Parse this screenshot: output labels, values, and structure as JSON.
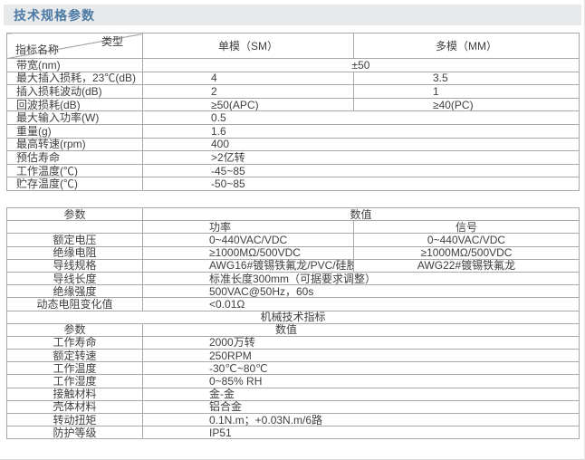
{
  "page": {
    "title": "技术规格参数"
  },
  "colors": {
    "accent": "#4d7ba6",
    "band_bg": "#e7e9eb",
    "border": "#a8a8a8",
    "text": "#404040"
  },
  "t1": {
    "corner": {
      "name": "指标名称",
      "type": "类型"
    },
    "cols": {
      "sm": "单模（SM）",
      "mm": "多模（MM）"
    },
    "rows": [
      {
        "label": "带宽(nm)",
        "value": "±50"
      },
      {
        "label": "最大插入损耗，23℃(dB)",
        "sm": "4",
        "mm": "3.5"
      },
      {
        "label": "插入损耗波动(dB)",
        "sm": "2",
        "mm": "1"
      },
      {
        "label": "回波损耗(dB)",
        "sm": "≥50(APC)",
        "mm": "≥40(PC)"
      },
      {
        "label": "最大输入功率(W)",
        "value": "0.5"
      },
      {
        "label": "重量(g)",
        "value": "1.6"
      },
      {
        "label": "最高转速(rpm)",
        "value": "400"
      },
      {
        "label": "预估寿命",
        "value": ">2亿转"
      },
      {
        "label": "工作温度(℃)",
        "value": "-45~85"
      },
      {
        "label": "贮存温度(℃)",
        "value": "-50~85"
      }
    ]
  },
  "t2": {
    "h": {
      "param": "参数",
      "value": "数值"
    },
    "sub": {
      "power": "功率",
      "signal": "信号"
    },
    "rows": [
      {
        "label": "额定电压",
        "power": "0~440VAC/VDC",
        "signal": "0~440VAC/VDC"
      },
      {
        "label": "绝缘电阻",
        "power": "≥1000MΩ/500VDC",
        "signal": "≥1000MΩ/500VDC"
      },
      {
        "label": "导线规格",
        "power": "AWG16#镀锡铁氟龙/PVC/硅胶",
        "signal": "AWG22#镀锡铁氟龙"
      },
      {
        "label": "导线长度",
        "value": "标准长度300mm（可据要求调整）"
      },
      {
        "label": "绝缘强度",
        "value": "500VAC@50Hz，60s"
      },
      {
        "label": "动态电阻变化值",
        "value": "<0.01Ω"
      }
    ],
    "section_title": "机械技术指标",
    "mech_h": {
      "param": "参数",
      "value": "数值"
    },
    "mech_rows": [
      {
        "label": "工作寿命",
        "value": "2000万转"
      },
      {
        "label": "额定转速",
        "value": "250RPM"
      },
      {
        "label": "工作温度",
        "value": "-30℃~80℃"
      },
      {
        "label": "工作湿度",
        "value": "0~85% RH"
      },
      {
        "label": "接触材料",
        "value": "金-金"
      },
      {
        "label": "壳体材料",
        "value": "铝合金"
      },
      {
        "label": "转动扭矩",
        "value": "0.1N.m；+0.03N.m/6路"
      },
      {
        "label": "防护等级",
        "value": "IP51"
      }
    ]
  }
}
